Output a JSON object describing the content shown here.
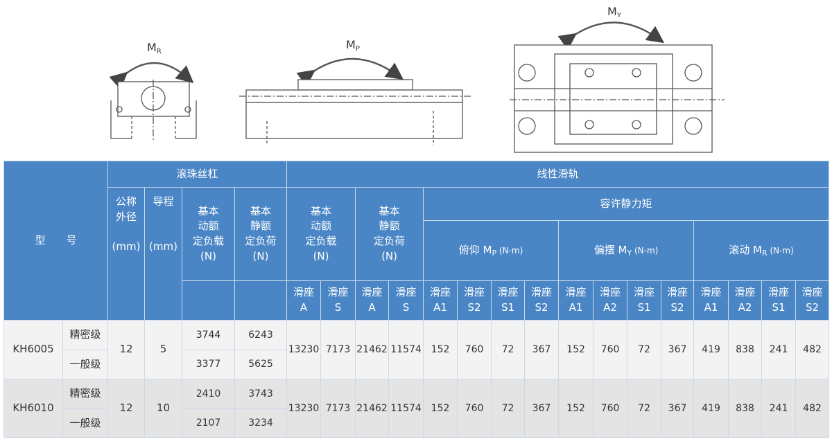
{
  "diagrams": {
    "roll_label": "M",
    "roll_sub": "R",
    "pitch_label": "M",
    "pitch_sub": "P",
    "yaw_label": "M",
    "yaw_sub": "Y"
  },
  "table": {
    "model_header": "型　　号",
    "ballscrew_header": "滚珠丝杠",
    "rail_header": "线性滑轨",
    "nominal_dia": [
      "公称",
      "外径",
      "(mm)"
    ],
    "lead": [
      "导程",
      "(mm)"
    ],
    "dyn_load": [
      "基本",
      "动额",
      "定负载",
      "(N)"
    ],
    "static_load": [
      "基本",
      "静额",
      "定负荷",
      "(N)"
    ],
    "allow_moment": "容许静力矩",
    "pitch": {
      "text": "俯仰 M",
      "sub": "P",
      "unit": " (N-m)"
    },
    "yaw": {
      "text": "偏摆 M",
      "sub": "Y",
      "unit": " (N-m)"
    },
    "roll": {
      "text": "滚动 M",
      "sub": "R",
      "unit": " (N-m)"
    },
    "block": "滑座",
    "block_types": [
      "A",
      "S",
      "A",
      "S",
      "A1",
      "S2",
      "S1",
      "S2",
      "A1",
      "A2",
      "S1",
      "S2",
      "A1",
      "A2",
      "S1",
      "S2"
    ],
    "rows": [
      {
        "model": "KH6005",
        "dia": "12",
        "lead": "5",
        "grades": [
          {
            "name": "精密级",
            "dyn": "3744",
            "stat": "6243"
          },
          {
            "name": "一般级",
            "dyn": "3377",
            "stat": "5625"
          }
        ],
        "rail": [
          "13230",
          "7173",
          "21462",
          "11574",
          "152",
          "760",
          "72",
          "367",
          "152",
          "760",
          "72",
          "367",
          "419",
          "838",
          "241",
          "482"
        ]
      },
      {
        "model": "KH6010",
        "dia": "12",
        "lead": "10",
        "grades": [
          {
            "name": "精密级",
            "dyn": "2410",
            "stat": "3743"
          },
          {
            "name": "一般级",
            "dyn": "2107",
            "stat": "3234"
          }
        ],
        "rail": [
          "13230",
          "7173",
          "21462",
          "11574",
          "152",
          "760",
          "72",
          "367",
          "152",
          "760",
          "72",
          "367",
          "419",
          "838",
          "241",
          "482"
        ]
      }
    ]
  },
  "colors": {
    "header_bg": "#4a86c5",
    "row_a": "#f3f3f3",
    "row_b": "#e4e4e4"
  }
}
